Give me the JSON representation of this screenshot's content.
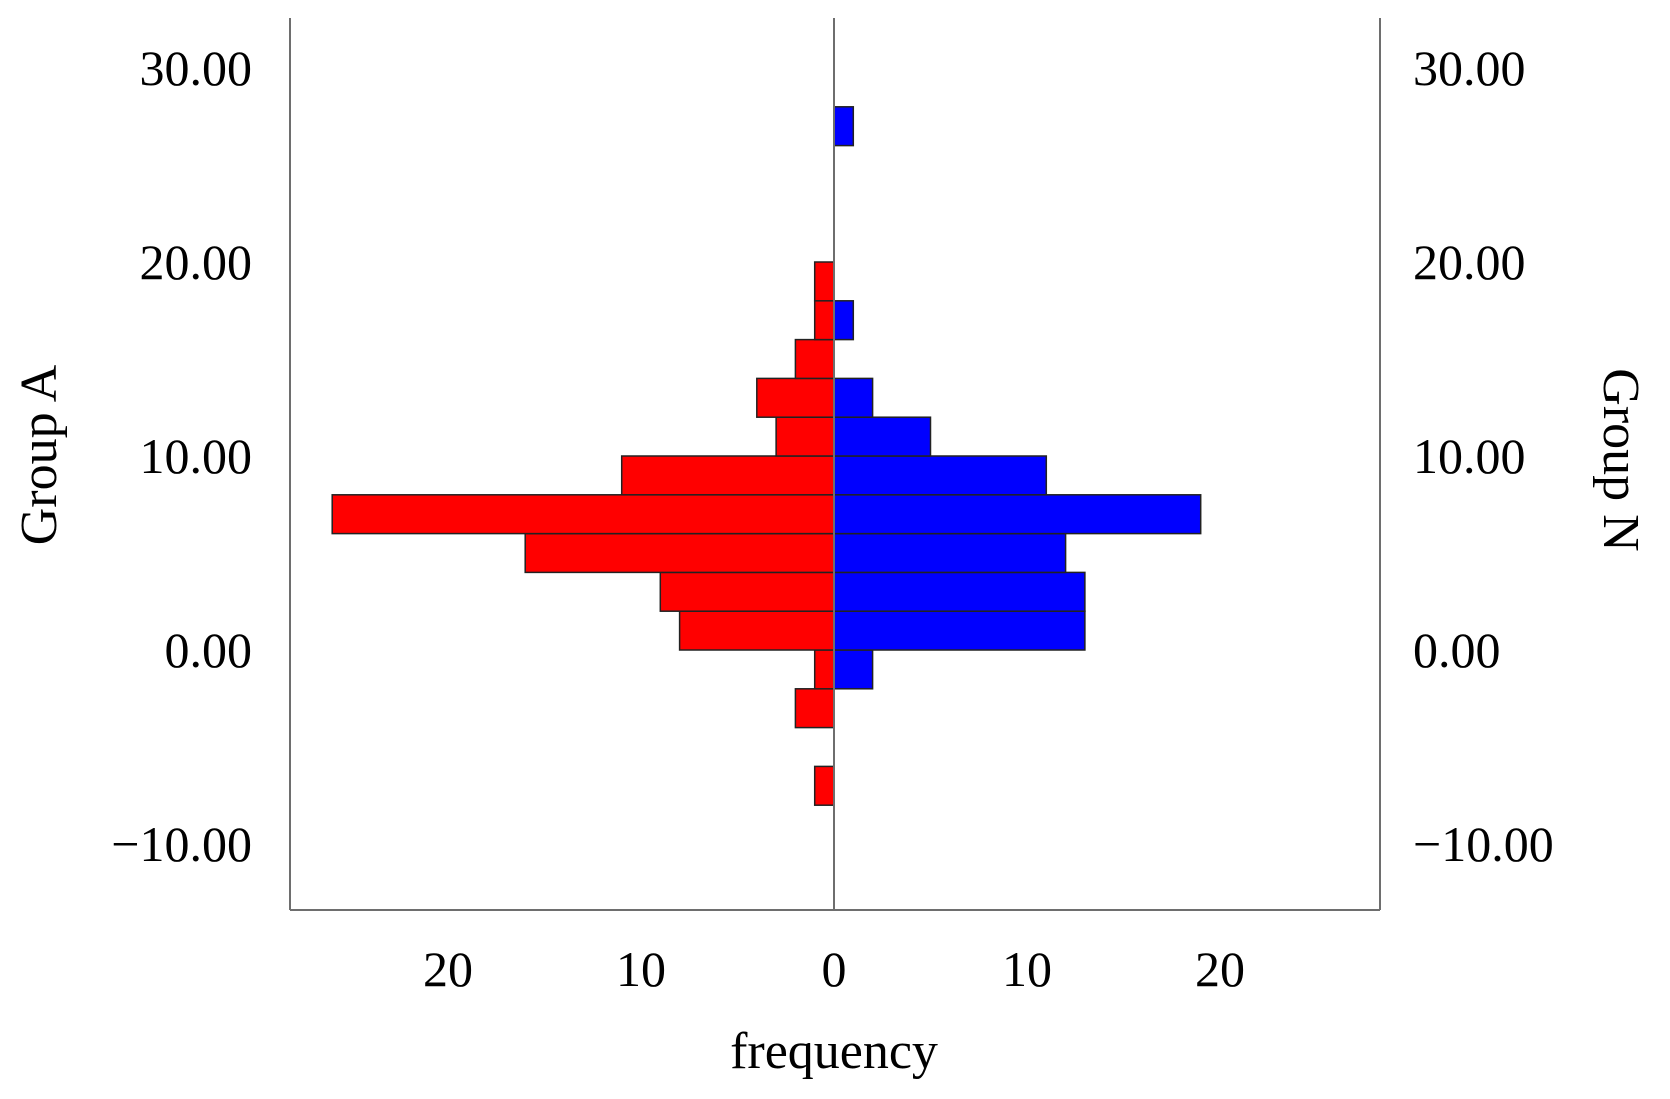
{
  "chart_data": {
    "type": "bar",
    "orientation": "horizontal",
    "layout": "back-to-back histogram",
    "bin_width": 2,
    "y_axis": {
      "ticks": [
        "−10.00",
        "0.00",
        "10.00",
        "20.00",
        "30.00"
      ],
      "tick_values": [
        -10,
        0,
        10,
        20,
        30
      ],
      "range": [
        -13.5,
        32.5
      ]
    },
    "x_axis": {
      "label": "frequency",
      "ticks_left": [
        "20",
        "10"
      ],
      "tick_left_values": [
        20,
        10
      ],
      "tick_zero": "0",
      "ticks_right": [
        "10",
        "20"
      ],
      "tick_right_values": [
        10,
        20
      ],
      "range": [
        -28,
        28
      ]
    },
    "series": [
      {
        "name": "Group A",
        "side": "left",
        "color": "#ff0000",
        "bins": [
          {
            "y0": -8,
            "y1": -6,
            "count": 1
          },
          {
            "y0": -4,
            "y1": -2,
            "count": 2
          },
          {
            "y0": -2,
            "y1": 0,
            "count": 1
          },
          {
            "y0": 0,
            "y1": 2,
            "count": 8
          },
          {
            "y0": 2,
            "y1": 4,
            "count": 9
          },
          {
            "y0": 4,
            "y1": 6,
            "count": 16
          },
          {
            "y0": 6,
            "y1": 8,
            "count": 26
          },
          {
            "y0": 8,
            "y1": 10,
            "count": 11
          },
          {
            "y0": 10,
            "y1": 12,
            "count": 3
          },
          {
            "y0": 12,
            "y1": 14,
            "count": 4
          },
          {
            "y0": 14,
            "y1": 16,
            "count": 2
          },
          {
            "y0": 16,
            "y1": 18,
            "count": 1
          },
          {
            "y0": 18,
            "y1": 20,
            "count": 1
          }
        ]
      },
      {
        "name": "Group N",
        "side": "right",
        "color": "#0000ff",
        "bins": [
          {
            "y0": -2,
            "y1": 0,
            "count": 2
          },
          {
            "y0": 0,
            "y1": 2,
            "count": 13
          },
          {
            "y0": 2,
            "y1": 4,
            "count": 13
          },
          {
            "y0": 4,
            "y1": 6,
            "count": 12
          },
          {
            "y0": 6,
            "y1": 8,
            "count": 19
          },
          {
            "y0": 8,
            "y1": 10,
            "count": 11
          },
          {
            "y0": 10,
            "y1": 12,
            "count": 5
          },
          {
            "y0": 12,
            "y1": 14,
            "count": 2
          },
          {
            "y0": 16,
            "y1": 18,
            "count": 1
          },
          {
            "y0": 26,
            "y1": 28,
            "count": 1
          }
        ]
      }
    ],
    "left_axis_label": "Group A",
    "right_axis_label": "Group N",
    "grid": false,
    "legend": "none"
  }
}
